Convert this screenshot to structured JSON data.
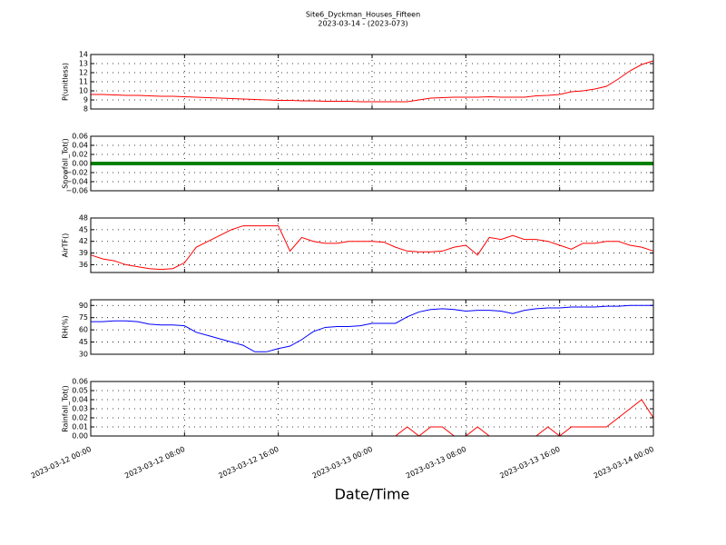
{
  "chart_data": [
    {
      "type": "line",
      "title": "Site6_Dyckman_Houses_Fifteen",
      "subtitle": "2023-03-14 - (2023-073)",
      "ylabel": "P(unitless)",
      "xlim": [
        "2023-03-12 00:00",
        "2023-03-14 00:00"
      ],
      "xticks": [
        "2023-03-12 00:00",
        "2023-03-12 08:00",
        "2023-03-12 16:00",
        "2023-03-13 00:00",
        "2023-03-13 08:00",
        "2023-03-13 16:00",
        "2023-03-14 00:00"
      ],
      "ylim": [
        8,
        14
      ],
      "yticks": [
        8,
        9,
        10,
        11,
        12,
        13,
        14
      ],
      "grid": true,
      "x": [
        "2023-03-12 00:00",
        "2023-03-12 01:00",
        "2023-03-12 02:00",
        "2023-03-12 03:00",
        "2023-03-12 04:00",
        "2023-03-12 05:00",
        "2023-03-12 06:00",
        "2023-03-12 07:00",
        "2023-03-12 08:00",
        "2023-03-12 09:00",
        "2023-03-12 10:00",
        "2023-03-12 11:00",
        "2023-03-12 12:00",
        "2023-03-12 13:00",
        "2023-03-12 14:00",
        "2023-03-12 15:00",
        "2023-03-12 16:00",
        "2023-03-12 17:00",
        "2023-03-12 18:00",
        "2023-03-12 19:00",
        "2023-03-12 20:00",
        "2023-03-12 21:00",
        "2023-03-12 22:00",
        "2023-03-12 23:00",
        "2023-03-13 00:00",
        "2023-03-13 01:00",
        "2023-03-13 02:00",
        "2023-03-13 03:00",
        "2023-03-13 04:00",
        "2023-03-13 05:00",
        "2023-03-13 06:00",
        "2023-03-13 07:00",
        "2023-03-13 08:00",
        "2023-03-13 09:00",
        "2023-03-13 10:00",
        "2023-03-13 11:00",
        "2023-03-13 12:00",
        "2023-03-13 13:00",
        "2023-03-13 14:00",
        "2023-03-13 15:00",
        "2023-03-13 16:00",
        "2023-03-13 17:00",
        "2023-03-13 18:00",
        "2023-03-13 19:00",
        "2023-03-13 20:00",
        "2023-03-13 21:00",
        "2023-03-13 22:00",
        "2023-03-13 23:00",
        "2023-03-14 00:00"
      ],
      "series": [
        {
          "color": "#ff0000",
          "values": [
            9.6,
            9.6,
            9.55,
            9.5,
            9.5,
            9.45,
            9.4,
            9.4,
            9.35,
            9.3,
            9.25,
            9.2,
            9.15,
            9.1,
            9.05,
            9.0,
            8.95,
            8.95,
            8.9,
            8.9,
            8.85,
            8.85,
            8.85,
            8.8,
            8.8,
            8.8,
            8.8,
            8.8,
            9.0,
            9.2,
            9.25,
            9.3,
            9.3,
            9.3,
            9.35,
            9.3,
            9.3,
            9.3,
            9.45,
            9.5,
            9.6,
            9.9,
            10.0,
            10.2,
            10.5,
            11.3,
            12.2,
            12.9,
            13.3
          ]
        }
      ]
    },
    {
      "type": "line",
      "ylabel": "Snowfall_Tot()",
      "xlim": [
        "2023-03-12 00:00",
        "2023-03-14 00:00"
      ],
      "xticks": [
        "2023-03-12 00:00",
        "2023-03-12 08:00",
        "2023-03-12 16:00",
        "2023-03-13 00:00",
        "2023-03-13 08:00",
        "2023-03-13 16:00",
        "2023-03-14 00:00"
      ],
      "ylim": [
        -0.06,
        0.06
      ],
      "yticks": [
        {
          "value": -0.06,
          "label": "−0.06"
        },
        {
          "value": -0.04,
          "label": "−0.04"
        },
        {
          "value": -0.02,
          "label": "−0.02"
        },
        {
          "value": 0,
          "label": "0.00"
        },
        0.02,
        0.04,
        0.06
      ],
      "grid": true,
      "x": [
        "2023-03-12 00:00",
        "2023-03-12 01:00",
        "2023-03-12 02:00",
        "2023-03-12 03:00",
        "2023-03-12 04:00",
        "2023-03-12 05:00",
        "2023-03-12 06:00",
        "2023-03-12 07:00",
        "2023-03-12 08:00",
        "2023-03-12 09:00",
        "2023-03-12 10:00",
        "2023-03-12 11:00",
        "2023-03-12 12:00",
        "2023-03-12 13:00",
        "2023-03-12 14:00",
        "2023-03-12 15:00",
        "2023-03-12 16:00",
        "2023-03-12 17:00",
        "2023-03-12 18:00",
        "2023-03-12 19:00",
        "2023-03-12 20:00",
        "2023-03-12 21:00",
        "2023-03-12 22:00",
        "2023-03-12 23:00",
        "2023-03-13 00:00",
        "2023-03-13 01:00",
        "2023-03-13 02:00",
        "2023-03-13 03:00",
        "2023-03-13 04:00",
        "2023-03-13 05:00",
        "2023-03-13 06:00",
        "2023-03-13 07:00",
        "2023-03-13 08:00",
        "2023-03-13 09:00",
        "2023-03-13 10:00",
        "2023-03-13 11:00",
        "2023-03-13 12:00",
        "2023-03-13 13:00",
        "2023-03-13 14:00",
        "2023-03-13 15:00",
        "2023-03-13 16:00",
        "2023-03-13 17:00",
        "2023-03-13 18:00",
        "2023-03-13 19:00",
        "2023-03-13 20:00",
        "2023-03-13 21:00",
        "2023-03-13 22:00",
        "2023-03-13 23:00",
        "2023-03-14 00:00"
      ],
      "series": [
        {
          "color": "#008000",
          "values": [
            0,
            0,
            0,
            0,
            0,
            0,
            0,
            0,
            0,
            0,
            0,
            0,
            0,
            0,
            0,
            0,
            0,
            0,
            0,
            0,
            0,
            0,
            0,
            0,
            0,
            0,
            0,
            0,
            0,
            0,
            0,
            0,
            0,
            0,
            0,
            0,
            0,
            0,
            0,
            0,
            0,
            0,
            0,
            0,
            0,
            0,
            0,
            0,
            0
          ]
        }
      ]
    },
    {
      "type": "line",
      "ylabel": "AirTF()",
      "xlim": [
        "2023-03-12 00:00",
        "2023-03-14 00:00"
      ],
      "xticks": [
        "2023-03-12 00:00",
        "2023-03-12 08:00",
        "2023-03-12 16:00",
        "2023-03-13 00:00",
        "2023-03-13 08:00",
        "2023-03-13 16:00",
        "2023-03-14 00:00"
      ],
      "ylim": [
        34,
        48
      ],
      "yticks": [
        36,
        39,
        42,
        45,
        48
      ],
      "grid": true,
      "x": [
        "2023-03-12 00:00",
        "2023-03-12 01:00",
        "2023-03-12 02:00",
        "2023-03-12 03:00",
        "2023-03-12 04:00",
        "2023-03-12 05:00",
        "2023-03-12 06:00",
        "2023-03-12 07:00",
        "2023-03-12 08:00",
        "2023-03-12 09:00",
        "2023-03-12 10:00",
        "2023-03-12 11:00",
        "2023-03-12 12:00",
        "2023-03-12 13:00",
        "2023-03-12 14:00",
        "2023-03-12 15:00",
        "2023-03-12 16:00",
        "2023-03-12 17:00",
        "2023-03-12 18:00",
        "2023-03-12 19:00",
        "2023-03-12 20:00",
        "2023-03-12 21:00",
        "2023-03-12 22:00",
        "2023-03-12 23:00",
        "2023-03-13 00:00",
        "2023-03-13 01:00",
        "2023-03-13 02:00",
        "2023-03-13 03:00",
        "2023-03-13 04:00",
        "2023-03-13 05:00",
        "2023-03-13 06:00",
        "2023-03-13 07:00",
        "2023-03-13 08:00",
        "2023-03-13 09:00",
        "2023-03-13 10:00",
        "2023-03-13 11:00",
        "2023-03-13 12:00",
        "2023-03-13 13:00",
        "2023-03-13 14:00",
        "2023-03-13 15:00",
        "2023-03-13 16:00",
        "2023-03-13 17:00",
        "2023-03-13 18:00",
        "2023-03-13 19:00",
        "2023-03-13 20:00",
        "2023-03-13 21:00",
        "2023-03-13 22:00",
        "2023-03-13 23:00",
        "2023-03-14 00:00"
      ],
      "series": [
        {
          "color": "#ff0000",
          "values": [
            38.5,
            37.5,
            37,
            36,
            35.5,
            35,
            34.8,
            35,
            36.5,
            40.5,
            42,
            43.5,
            45,
            46,
            46,
            46,
            46,
            39.5,
            43,
            42,
            41.5,
            41.5,
            42,
            42,
            42,
            41.8,
            40.5,
            39.5,
            39.3,
            39.3,
            39.5,
            40.5,
            41,
            38.5,
            43,
            42.5,
            43.5,
            42.5,
            42.5,
            42,
            41,
            40,
            41.5,
            41.5,
            42,
            42,
            41,
            40.5,
            39.5
          ]
        }
      ]
    },
    {
      "type": "line",
      "ylabel": "RH(%)",
      "xlim": [
        "2023-03-12 00:00",
        "2023-03-14 00:00"
      ],
      "xticks": [
        "2023-03-12 00:00",
        "2023-03-12 08:00",
        "2023-03-12 16:00",
        "2023-03-13 00:00",
        "2023-03-13 08:00",
        "2023-03-13 16:00",
        "2023-03-14 00:00"
      ],
      "ylim": [
        30,
        97
      ],
      "yticks": [
        30,
        45,
        60,
        75,
        90
      ],
      "grid": true,
      "x": [
        "2023-03-12 00:00",
        "2023-03-12 01:00",
        "2023-03-12 02:00",
        "2023-03-12 03:00",
        "2023-03-12 04:00",
        "2023-03-12 05:00",
        "2023-03-12 06:00",
        "2023-03-12 07:00",
        "2023-03-12 08:00",
        "2023-03-12 09:00",
        "2023-03-12 10:00",
        "2023-03-12 11:00",
        "2023-03-12 12:00",
        "2023-03-12 13:00",
        "2023-03-12 14:00",
        "2023-03-12 15:00",
        "2023-03-12 16:00",
        "2023-03-12 17:00",
        "2023-03-12 18:00",
        "2023-03-12 19:00",
        "2023-03-12 20:00",
        "2023-03-12 21:00",
        "2023-03-12 22:00",
        "2023-03-12 23:00",
        "2023-03-13 00:00",
        "2023-03-13 01:00",
        "2023-03-13 02:00",
        "2023-03-13 03:00",
        "2023-03-13 04:00",
        "2023-03-13 05:00",
        "2023-03-13 06:00",
        "2023-03-13 07:00",
        "2023-03-13 08:00",
        "2023-03-13 09:00",
        "2023-03-13 10:00",
        "2023-03-13 11:00",
        "2023-03-13 12:00",
        "2023-03-13 13:00",
        "2023-03-13 14:00",
        "2023-03-13 15:00",
        "2023-03-13 16:00",
        "2023-03-13 17:00",
        "2023-03-13 18:00",
        "2023-03-13 19:00",
        "2023-03-13 20:00",
        "2023-03-13 21:00",
        "2023-03-13 22:00",
        "2023-03-13 23:00",
        "2023-03-14 00:00"
      ],
      "series": [
        {
          "color": "#0000ff",
          "values": [
            70,
            70,
            71,
            71,
            70,
            67,
            66,
            66,
            65,
            57,
            53,
            49,
            45,
            41,
            33,
            33,
            37,
            40,
            48,
            58,
            63,
            64,
            64,
            65,
            68,
            68,
            68,
            76,
            82,
            85,
            86,
            85,
            83,
            84,
            84,
            83,
            80,
            84,
            86,
            87,
            87,
            88,
            88,
            88,
            89,
            89,
            90,
            90,
            90
          ]
        }
      ]
    },
    {
      "type": "line",
      "ylabel": "Rainfall_Tot()",
      "xlabel": "Date/Time",
      "xlim": [
        "2023-03-12 00:00",
        "2023-03-14 00:00"
      ],
      "xticks": [
        "2023-03-12 00:00",
        "2023-03-12 08:00",
        "2023-03-12 16:00",
        "2023-03-13 00:00",
        "2023-03-13 08:00",
        "2023-03-13 16:00",
        "2023-03-14 00:00"
      ],
      "ylim": [
        0,
        0.06
      ],
      "yticks": [
        {
          "value": 0,
          "label": "0.00"
        },
        0.01,
        0.02,
        0.03,
        0.04,
        0.05,
        0.06
      ],
      "grid": true,
      "x": [
        "2023-03-12 00:00",
        "2023-03-12 01:00",
        "2023-03-12 02:00",
        "2023-03-12 03:00",
        "2023-03-12 04:00",
        "2023-03-12 05:00",
        "2023-03-12 06:00",
        "2023-03-12 07:00",
        "2023-03-12 08:00",
        "2023-03-12 09:00",
        "2023-03-12 10:00",
        "2023-03-12 11:00",
        "2023-03-12 12:00",
        "2023-03-12 13:00",
        "2023-03-12 14:00",
        "2023-03-12 15:00",
        "2023-03-12 16:00",
        "2023-03-12 17:00",
        "2023-03-12 18:00",
        "2023-03-12 19:00",
        "2023-03-12 20:00",
        "2023-03-12 21:00",
        "2023-03-12 22:00",
        "2023-03-12 23:00",
        "2023-03-13 00:00",
        "2023-03-13 01:00",
        "2023-03-13 02:00",
        "2023-03-13 03:00",
        "2023-03-13 04:00",
        "2023-03-13 05:00",
        "2023-03-13 06:00",
        "2023-03-13 07:00",
        "2023-03-13 08:00",
        "2023-03-13 09:00",
        "2023-03-13 10:00",
        "2023-03-13 11:00",
        "2023-03-13 12:00",
        "2023-03-13 13:00",
        "2023-03-13 14:00",
        "2023-03-13 15:00",
        "2023-03-13 16:00",
        "2023-03-13 17:00",
        "2023-03-13 18:00",
        "2023-03-13 19:00",
        "2023-03-13 20:00",
        "2023-03-13 21:00",
        "2023-03-13 22:00",
        "2023-03-13 23:00",
        "2023-03-14 00:00"
      ],
      "series": [
        {
          "color": "#ff0000",
          "values": [
            0,
            0,
            0,
            0,
            0,
            0,
            0,
            0,
            0,
            0,
            0,
            0,
            0,
            0,
            0,
            0,
            0,
            0,
            0,
            0,
            0,
            0,
            0,
            0,
            0,
            0,
            0,
            0.01,
            0,
            0.01,
            0.01,
            0,
            0,
            0.01,
            0,
            0,
            0,
            0,
            0,
            0.01,
            0,
            0.01,
            0.01,
            0.01,
            0.01,
            0.02,
            0.03,
            0.04,
            0.02
          ]
        }
      ]
    }
  ]
}
